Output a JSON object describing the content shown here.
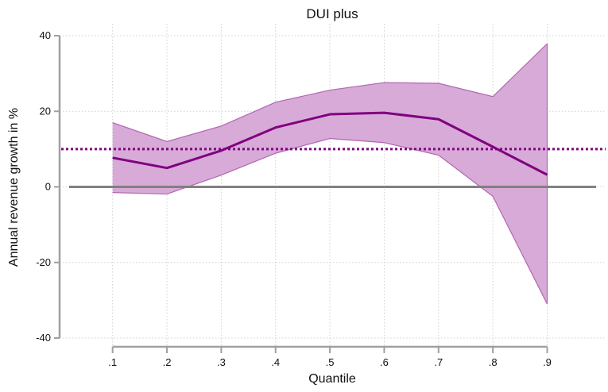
{
  "chart_data": {
    "type": "line",
    "title": "DUI plus",
    "xlabel": "Quantile",
    "ylabel": "Annual revenue growth in %",
    "x": [
      0.1,
      0.2,
      0.3,
      0.4,
      0.5,
      0.6,
      0.7,
      0.8,
      0.9
    ],
    "x_tick_labels": [
      ".1",
      ".2",
      ".3",
      ".4",
      ".5",
      ".6",
      ".7",
      ".8",
      ".9"
    ],
    "y_ticks": [
      -40,
      -20,
      0,
      20,
      40
    ],
    "y_tick_labels": [
      "-40",
      "-20",
      "0",
      "20",
      "40"
    ],
    "xlim": [
      0.02,
      0.99
    ],
    "ylim": [
      -40,
      40
    ],
    "grid": true,
    "series": [
      {
        "role": "estimate",
        "values": [
          7.7,
          5.0,
          9.6,
          15.7,
          19.2,
          19.6,
          17.9,
          10.6,
          3.2
        ],
        "color": "#800080"
      },
      {
        "role": "confidence-band",
        "lower": [
          -1.5,
          -1.9,
          3.1,
          8.9,
          12.8,
          11.7,
          8.4,
          -2.5,
          -31.0
        ],
        "upper": [
          17.0,
          12.0,
          16.1,
          22.4,
          25.6,
          27.6,
          27.4,
          23.9,
          37.9
        ],
        "fill": "#d7aad7",
        "stroke": "#b266b2"
      }
    ],
    "reference_lines": [
      {
        "role": "zero-line",
        "y": 0,
        "color": "#808080",
        "style": "solid"
      },
      {
        "role": "benchmark",
        "y": 10,
        "color": "#800080",
        "style": "dotted"
      }
    ]
  }
}
